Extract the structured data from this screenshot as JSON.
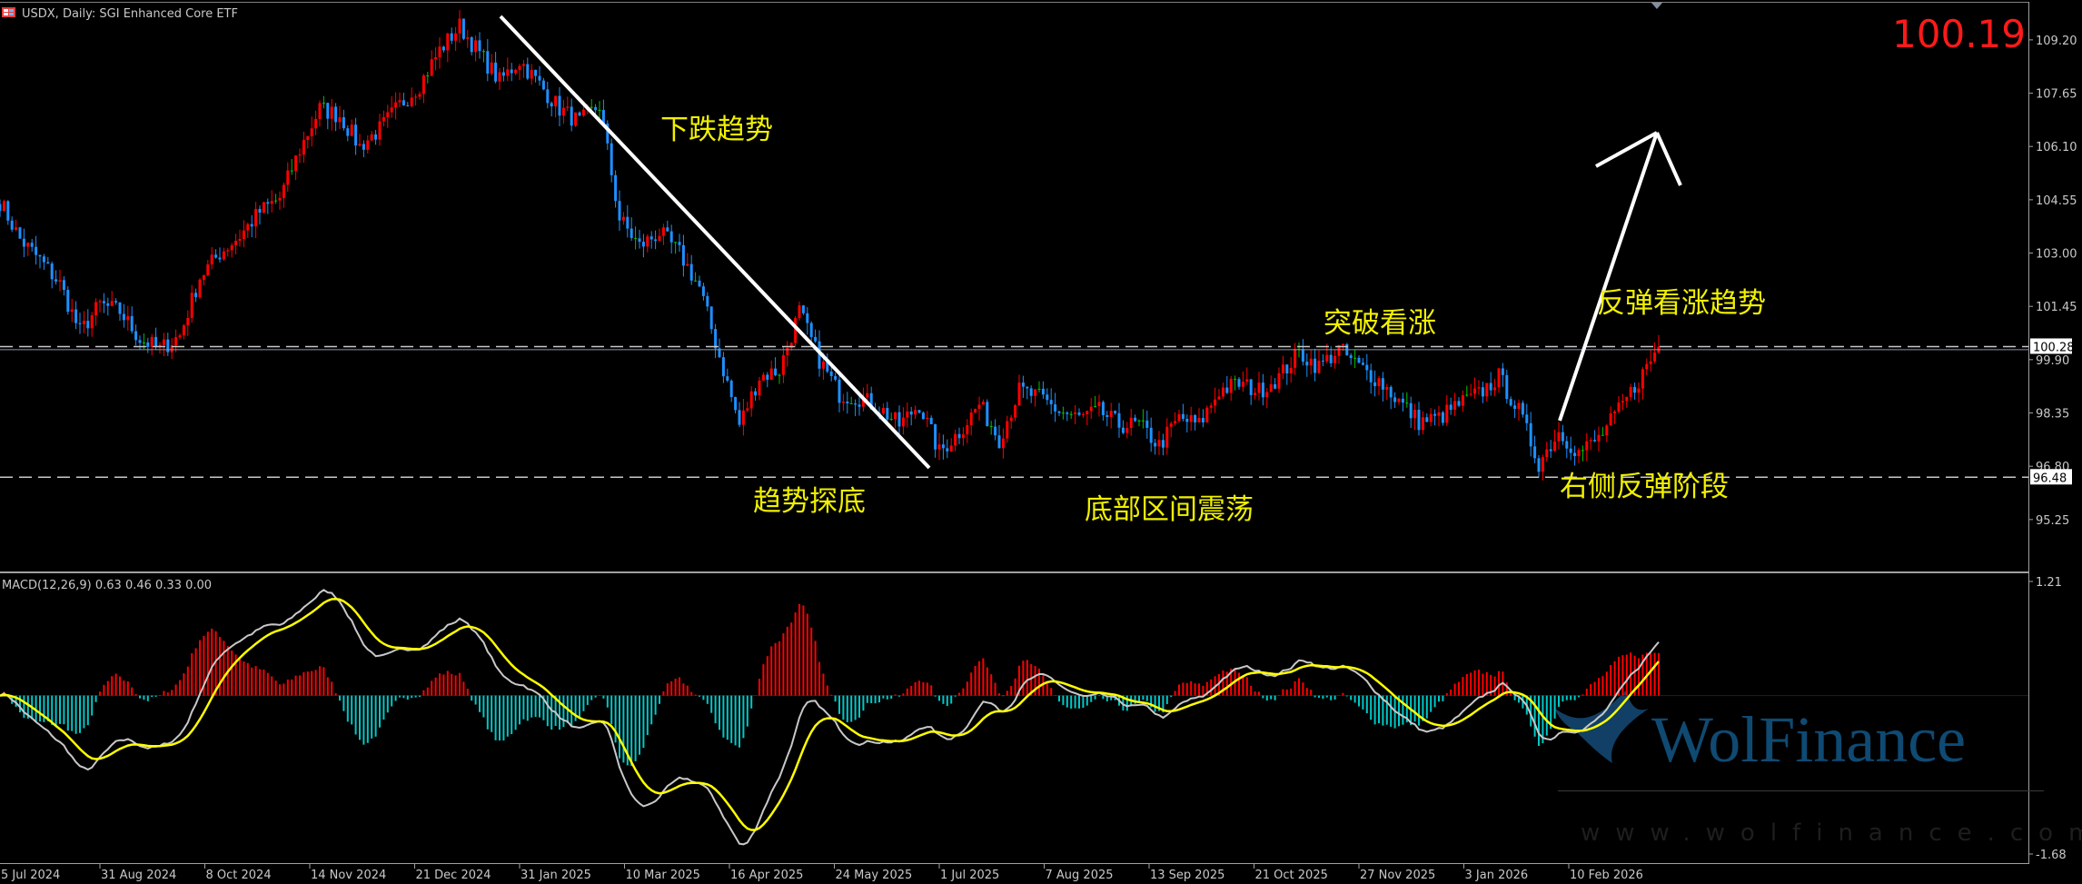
{
  "header": {
    "symbol_title": "USDX, Daily:  SGI Enhanced Core ETF",
    "last_price_big": "100.19",
    "chart-icon": "chart-window-icon"
  },
  "chart_data": [
    {
      "type": "candlestick",
      "title": "USDX, Daily:  SGI Enhanced Core ETF",
      "ylim": [
        93.74,
        110.28
      ],
      "y_ticks": [
        "109.20",
        "107.65",
        "106.10",
        "104.55",
        "103.00",
        "101.45",
        "99.90",
        "98.35",
        "96.80",
        "95.25"
      ],
      "x_ticks": [
        "5 Jul 2024",
        "31 Aug 2024",
        "8 Oct 2024",
        "14 Nov 2024",
        "21 Dec 2024",
        "31 Jan 2025",
        "10 Mar 2025",
        "16 Apr 2025",
        "24 May 2025",
        "1 Jul 2025",
        "7 Aug 2025",
        "13 Sep 2025",
        "21 Oct 2025",
        "27 Nov 2025",
        "3 Jan 2026",
        "10 Feb 2026"
      ],
      "approx_weekly_close": [
        104.5,
        103.4,
        102.8,
        102.1,
        100.7,
        101.5,
        101.3,
        100.5,
        100.2,
        100.6,
        102.3,
        103.0,
        103.5,
        104.2,
        104.6,
        106.0,
        107.2,
        107.0,
        106.1,
        106.6,
        107.3,
        107.9,
        108.9,
        109.6,
        108.8,
        108.0,
        108.6,
        107.9,
        107.2,
        106.8,
        107.3,
        104.0,
        103.2,
        103.6,
        103.0,
        102.0,
        100.0,
        98.0,
        99.4,
        99.6,
        101.3,
        99.9,
        98.9,
        98.8,
        98.5,
        98.0,
        98.6,
        97.2,
        97.8,
        98.6,
        97.6,
        99.0,
        98.8,
        98.4,
        98.2,
        98.4,
        98.0,
        98.0,
        97.4,
        98.2,
        98.0,
        99.0,
        99.2,
        99.0,
        99.4,
        100.1,
        99.7,
        100.2,
        99.7,
        99.3,
        98.7,
        98.1,
        98.2,
        98.6,
        98.9,
        99.4,
        98.4,
        96.9,
        97.8,
        97.2,
        97.6,
        98.4,
        99.3,
        100.28
      ],
      "up_color": "#ff0000",
      "down_color": "#1e90ff",
      "horizontal_levels": [
        {
          "value": 100.28,
          "label": "100.28",
          "style": "dashed"
        },
        {
          "value": 96.48,
          "label": "96.48",
          "style": "dashed"
        }
      ],
      "current_price": 100.19,
      "annotations": [
        "下跌趋势",
        "趋势探底",
        "底部区间震荡",
        "突破看涨",
        "反弹看涨趋势",
        "右侧反弹阶段"
      ],
      "annotation_color": "#f0f000",
      "grid": false
    },
    {
      "type": "macd",
      "label": "MACD(12,26,9) 0.63 0.46 0.33 0.00",
      "ylim": [
        -1.68,
        1.21
      ],
      "y_ticks": [
        "1.21",
        "-1.68"
      ],
      "params": [
        12,
        26,
        9
      ],
      "colors": {
        "macd": "#c8c8c8",
        "signal": "#ffff00",
        "hist_pos": "#ff0000",
        "hist_neg": "#00c8c8"
      }
    }
  ],
  "watermark": {
    "brand": "WolFinance",
    "url": "www.wolfinance.com"
  }
}
